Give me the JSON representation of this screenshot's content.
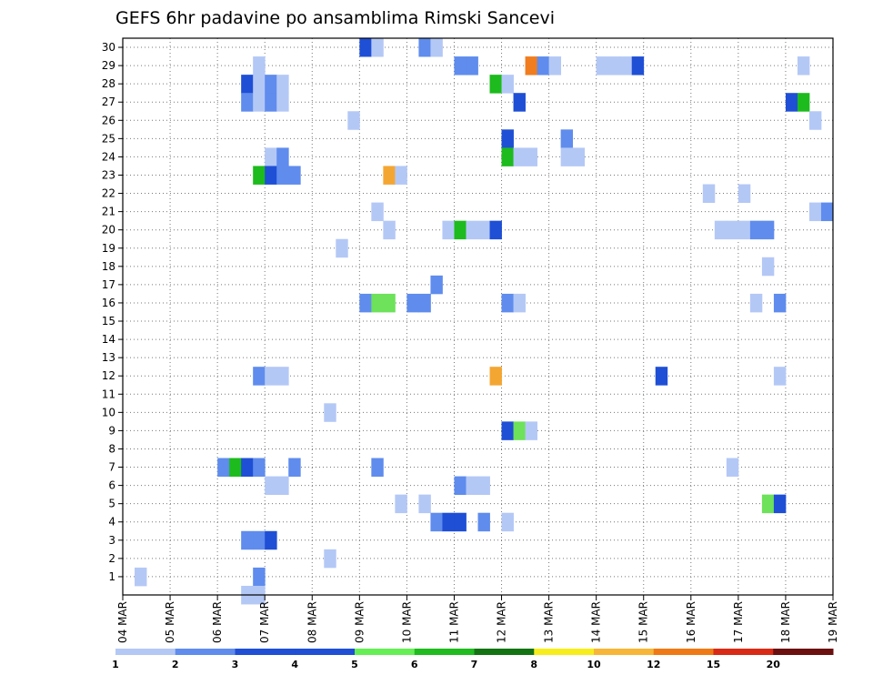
{
  "chart_data": {
    "type": "heatmap",
    "title": "GEFS 6hr padavine po ansamblima Rimski Sancevi",
    "xlabel": "",
    "ylabel": "",
    "x_tick_labels": [
      "04 MAR",
      "05 MAR",
      "06 MAR",
      "07 MAR",
      "08 MAR",
      "09 MAR",
      "10 MAR",
      "11 MAR",
      "12 MAR",
      "13 MAR",
      "14 MAR",
      "15 MAR",
      "16 MAR",
      "17 MAR",
      "18 MAR",
      "19 MAR"
    ],
    "y_tick_labels": [
      "1",
      "2",
      "3",
      "4",
      "5",
      "6",
      "7",
      "8",
      "9",
      "10",
      "11",
      "12",
      "13",
      "14",
      "15",
      "16",
      "17",
      "18",
      "19",
      "20",
      "21",
      "22",
      "23",
      "24",
      "25",
      "26",
      "27",
      "28",
      "29",
      "30"
    ],
    "x_range_days": [
      0,
      15
    ],
    "y_range": [
      0,
      30.5
    ],
    "step_hours": 6,
    "grid": true,
    "legend_position": "bottom",
    "legend": {
      "labels": [
        "1",
        "2",
        "3",
        "4",
        "5",
        "6",
        "7",
        "8",
        "10",
        "12",
        "15",
        "20"
      ],
      "colors": [
        "#b4c8f6",
        "#5f8ced",
        "#1f4fd5",
        "#1f4fd5",
        "#66ee55",
        "#1fbb1f",
        "#137313",
        "#f7ed1c",
        "#f7b637",
        "#ef7a15",
        "#d82a15",
        "#6b0f0f"
      ]
    },
    "category_colors": [
      "#b4c8f6",
      "#5f8ced",
      "#1f4fd5",
      "#6de25a",
      "#1dbb1d",
      "#f4a633",
      "#f07d1f"
    ],
    "cells": [
      {
        "m": 30,
        "t": 5.0,
        "c": 2
      },
      {
        "m": 30,
        "t": 5.25,
        "c": 0
      },
      {
        "m": 30,
        "t": 6.25,
        "c": 1
      },
      {
        "m": 30,
        "t": 6.5,
        "c": 0
      },
      {
        "m": 29,
        "t": 2.75,
        "c": 0
      },
      {
        "m": 29,
        "t": 7.0,
        "c": 1
      },
      {
        "m": 29,
        "t": 7.25,
        "c": 1
      },
      {
        "m": 29,
        "t": 8.5,
        "c": 6
      },
      {
        "m": 29,
        "t": 8.75,
        "c": 1
      },
      {
        "m": 29,
        "t": 9.0,
        "c": 0
      },
      {
        "m": 29,
        "t": 10.0,
        "c": 0
      },
      {
        "m": 29,
        "t": 10.25,
        "c": 0
      },
      {
        "m": 29,
        "t": 10.5,
        "c": 0
      },
      {
        "m": 29,
        "t": 10.75,
        "c": 2
      },
      {
        "m": 29,
        "t": 14.25,
        "c": 0
      },
      {
        "m": 28,
        "t": 2.5,
        "c": 2
      },
      {
        "m": 28,
        "t": 2.75,
        "c": 0
      },
      {
        "m": 28,
        "t": 3.0,
        "c": 1
      },
      {
        "m": 28,
        "t": 3.25,
        "c": 0
      },
      {
        "m": 28,
        "t": 7.75,
        "c": 4
      },
      {
        "m": 28,
        "t": 8.0,
        "c": 0
      },
      {
        "m": 27,
        "t": 2.5,
        "c": 1
      },
      {
        "m": 27,
        "t": 2.75,
        "c": 0
      },
      {
        "m": 27,
        "t": 3.0,
        "c": 1
      },
      {
        "m": 27,
        "t": 3.25,
        "c": 0
      },
      {
        "m": 27,
        "t": 8.25,
        "c": 2
      },
      {
        "m": 27,
        "t": 14.0,
        "c": 2
      },
      {
        "m": 27,
        "t": 14.25,
        "c": 4
      },
      {
        "m": 26,
        "t": 4.75,
        "c": 0
      },
      {
        "m": 26,
        "t": 14.5,
        "c": 0
      },
      {
        "m": 25,
        "t": 8.0,
        "c": 2
      },
      {
        "m": 25,
        "t": 9.25,
        "c": 1
      },
      {
        "m": 24,
        "t": 3.0,
        "c": 0
      },
      {
        "m": 24,
        "t": 3.25,
        "c": 1
      },
      {
        "m": 24,
        "t": 8.0,
        "c": 4
      },
      {
        "m": 24,
        "t": 8.25,
        "c": 0
      },
      {
        "m": 24,
        "t": 8.5,
        "c": 0
      },
      {
        "m": 24,
        "t": 9.25,
        "c": 0
      },
      {
        "m": 24,
        "t": 9.5,
        "c": 0
      },
      {
        "m": 23,
        "t": 2.75,
        "c": 4
      },
      {
        "m": 23,
        "t": 3.0,
        "c": 2
      },
      {
        "m": 23,
        "t": 3.25,
        "c": 1
      },
      {
        "m": 23,
        "t": 3.5,
        "c": 1
      },
      {
        "m": 23,
        "t": 5.5,
        "c": 5
      },
      {
        "m": 23,
        "t": 5.75,
        "c": 0
      },
      {
        "m": 22,
        "t": 12.25,
        "c": 0
      },
      {
        "m": 22,
        "t": 13.0,
        "c": 0
      },
      {
        "m": 21,
        "t": 5.25,
        "c": 0
      },
      {
        "m": 21,
        "t": 14.5,
        "c": 0
      },
      {
        "m": 21,
        "t": 14.75,
        "c": 1
      },
      {
        "m": 20,
        "t": 5.5,
        "c": 0
      },
      {
        "m": 20,
        "t": 6.75,
        "c": 0
      },
      {
        "m": 20,
        "t": 7.0,
        "c": 4
      },
      {
        "m": 20,
        "t": 7.25,
        "c": 0
      },
      {
        "m": 20,
        "t": 7.5,
        "c": 0
      },
      {
        "m": 20,
        "t": 7.75,
        "c": 2
      },
      {
        "m": 20,
        "t": 12.5,
        "c": 0
      },
      {
        "m": 20,
        "t": 12.75,
        "c": 0
      },
      {
        "m": 20,
        "t": 13.0,
        "c": 0
      },
      {
        "m": 20,
        "t": 13.25,
        "c": 1
      },
      {
        "m": 20,
        "t": 13.5,
        "c": 1
      },
      {
        "m": 19,
        "t": 4.5,
        "c": 0
      },
      {
        "m": 18,
        "t": 13.5,
        "c": 0
      },
      {
        "m": 17,
        "t": 6.5,
        "c": 1
      },
      {
        "m": 16,
        "t": 5.0,
        "c": 1
      },
      {
        "m": 16,
        "t": 5.25,
        "c": 3
      },
      {
        "m": 16,
        "t": 5.5,
        "c": 3
      },
      {
        "m": 16,
        "t": 6.0,
        "c": 1
      },
      {
        "m": 16,
        "t": 6.25,
        "c": 1
      },
      {
        "m": 16,
        "t": 8.0,
        "c": 1
      },
      {
        "m": 16,
        "t": 8.25,
        "c": 0
      },
      {
        "m": 16,
        "t": 13.25,
        "c": 0
      },
      {
        "m": 16,
        "t": 13.75,
        "c": 1
      },
      {
        "m": 12,
        "t": 2.75,
        "c": 1
      },
      {
        "m": 12,
        "t": 3.0,
        "c": 0
      },
      {
        "m": 12,
        "t": 3.25,
        "c": 0
      },
      {
        "m": 12,
        "t": 7.75,
        "c": 5
      },
      {
        "m": 12,
        "t": 11.25,
        "c": 2
      },
      {
        "m": 12,
        "t": 13.75,
        "c": 0
      },
      {
        "m": 10,
        "t": 4.25,
        "c": 0
      },
      {
        "m": 9,
        "t": 8.0,
        "c": 2
      },
      {
        "m": 9,
        "t": 8.25,
        "c": 3
      },
      {
        "m": 9,
        "t": 8.5,
        "c": 0
      },
      {
        "m": 7,
        "t": 2.0,
        "c": 1
      },
      {
        "m": 7,
        "t": 2.25,
        "c": 4
      },
      {
        "m": 7,
        "t": 2.5,
        "c": 2
      },
      {
        "m": 7,
        "t": 2.75,
        "c": 1
      },
      {
        "m": 7,
        "t": 3.5,
        "c": 1
      },
      {
        "m": 7,
        "t": 5.25,
        "c": 1
      },
      {
        "m": 7,
        "t": 12.75,
        "c": 0
      },
      {
        "m": 6,
        "t": 3.0,
        "c": 0
      },
      {
        "m": 6,
        "t": 3.25,
        "c": 0
      },
      {
        "m": 6,
        "t": 7.0,
        "c": 1
      },
      {
        "m": 6,
        "t": 7.25,
        "c": 0
      },
      {
        "m": 6,
        "t": 7.5,
        "c": 0
      },
      {
        "m": 5,
        "t": 5.75,
        "c": 0
      },
      {
        "m": 5,
        "t": 6.25,
        "c": 0
      },
      {
        "m": 5,
        "t": 13.5,
        "c": 3
      },
      {
        "m": 5,
        "t": 13.75,
        "c": 2
      },
      {
        "m": 4,
        "t": 6.5,
        "c": 1
      },
      {
        "m": 4,
        "t": 6.75,
        "c": 2
      },
      {
        "m": 4,
        "t": 7.0,
        "c": 2
      },
      {
        "m": 4,
        "t": 7.5,
        "c": 1
      },
      {
        "m": 4,
        "t": 8.0,
        "c": 0
      },
      {
        "m": 3,
        "t": 2.5,
        "c": 1
      },
      {
        "m": 3,
        "t": 2.75,
        "c": 1
      },
      {
        "m": 3,
        "t": 3.0,
        "c": 2
      },
      {
        "m": 2,
        "t": 4.25,
        "c": 0
      },
      {
        "m": 1,
        "t": 0.25,
        "c": 0
      },
      {
        "m": 1,
        "t": 2.75,
        "c": 1
      },
      {
        "m": 0,
        "t": 2.5,
        "c": 0
      },
      {
        "m": 0,
        "t": 2.75,
        "c": 0
      }
    ]
  }
}
